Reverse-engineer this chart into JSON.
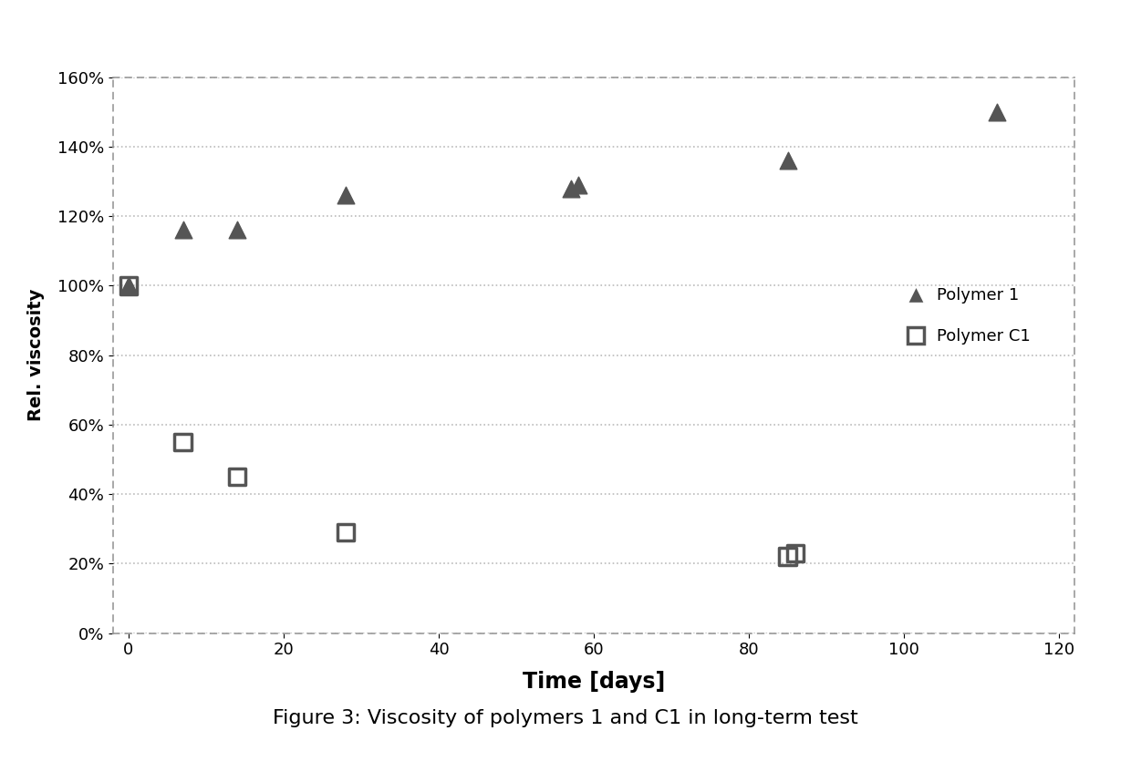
{
  "polymer1_x": [
    0,
    7,
    14,
    28,
    57,
    58,
    85,
    112
  ],
  "polymer1_y": [
    1.0,
    1.16,
    1.16,
    1.26,
    1.28,
    1.29,
    1.36,
    1.5
  ],
  "polymerC1_x": [
    0,
    7,
    14,
    28,
    85,
    86
  ],
  "polymerC1_y": [
    1.0,
    0.55,
    0.45,
    0.29,
    0.22,
    0.23
  ],
  "xlabel": "Time [days]",
  "ylabel": "Rel. viscosity",
  "title": "Figure 3: Viscosity of polymers 1 and C1 in long-term test",
  "legend_polymer1": "Polymer 1",
  "legend_polymerC1": "Polymer C1",
  "ylim": [
    0.0,
    1.6
  ],
  "xlim": [
    -2,
    122
  ],
  "yticks": [
    0.0,
    0.2,
    0.4,
    0.6,
    0.8,
    1.0,
    1.2,
    1.4,
    1.6
  ],
  "xticks": [
    0,
    20,
    40,
    60,
    80,
    100,
    120
  ],
  "marker_color": "#555555",
  "background_color": "#ffffff",
  "grid_color": "#bbbbbb",
  "page_bg": "#f0f0f0"
}
